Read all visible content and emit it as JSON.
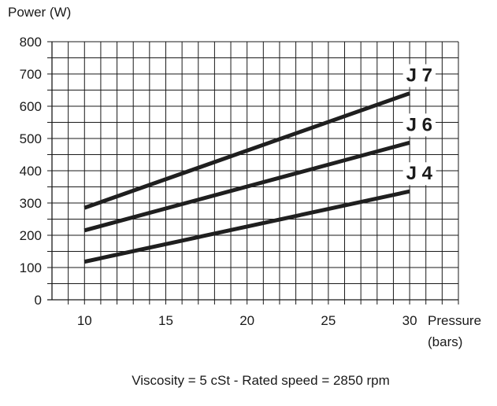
{
  "chart_data": {
    "type": "line",
    "ylabel": "Power (W)",
    "xlabel_line1": "Pressure",
    "xlabel_line2": "(bars)",
    "caption": "Viscosity = 5 cSt  -  Rated speed = 2850 rpm",
    "xlim": [
      8,
      33
    ],
    "ylim": [
      0,
      800
    ],
    "x_ticks": [
      10,
      15,
      20,
      25,
      30
    ],
    "y_ticks": [
      0,
      100,
      200,
      300,
      400,
      500,
      600,
      700,
      800
    ],
    "grid": true,
    "series": [
      {
        "name": "J 7",
        "x": [
          10,
          30
        ],
        "values": [
          285,
          640
        ]
      },
      {
        "name": "J 6",
        "x": [
          10,
          30
        ],
        "values": [
          215,
          487
        ]
      },
      {
        "name": "J 4",
        "x": [
          10,
          30
        ],
        "values": [
          118,
          336
        ]
      }
    ],
    "line_color": "#1f1f1f",
    "grid_color": "#1a1a1a"
  }
}
